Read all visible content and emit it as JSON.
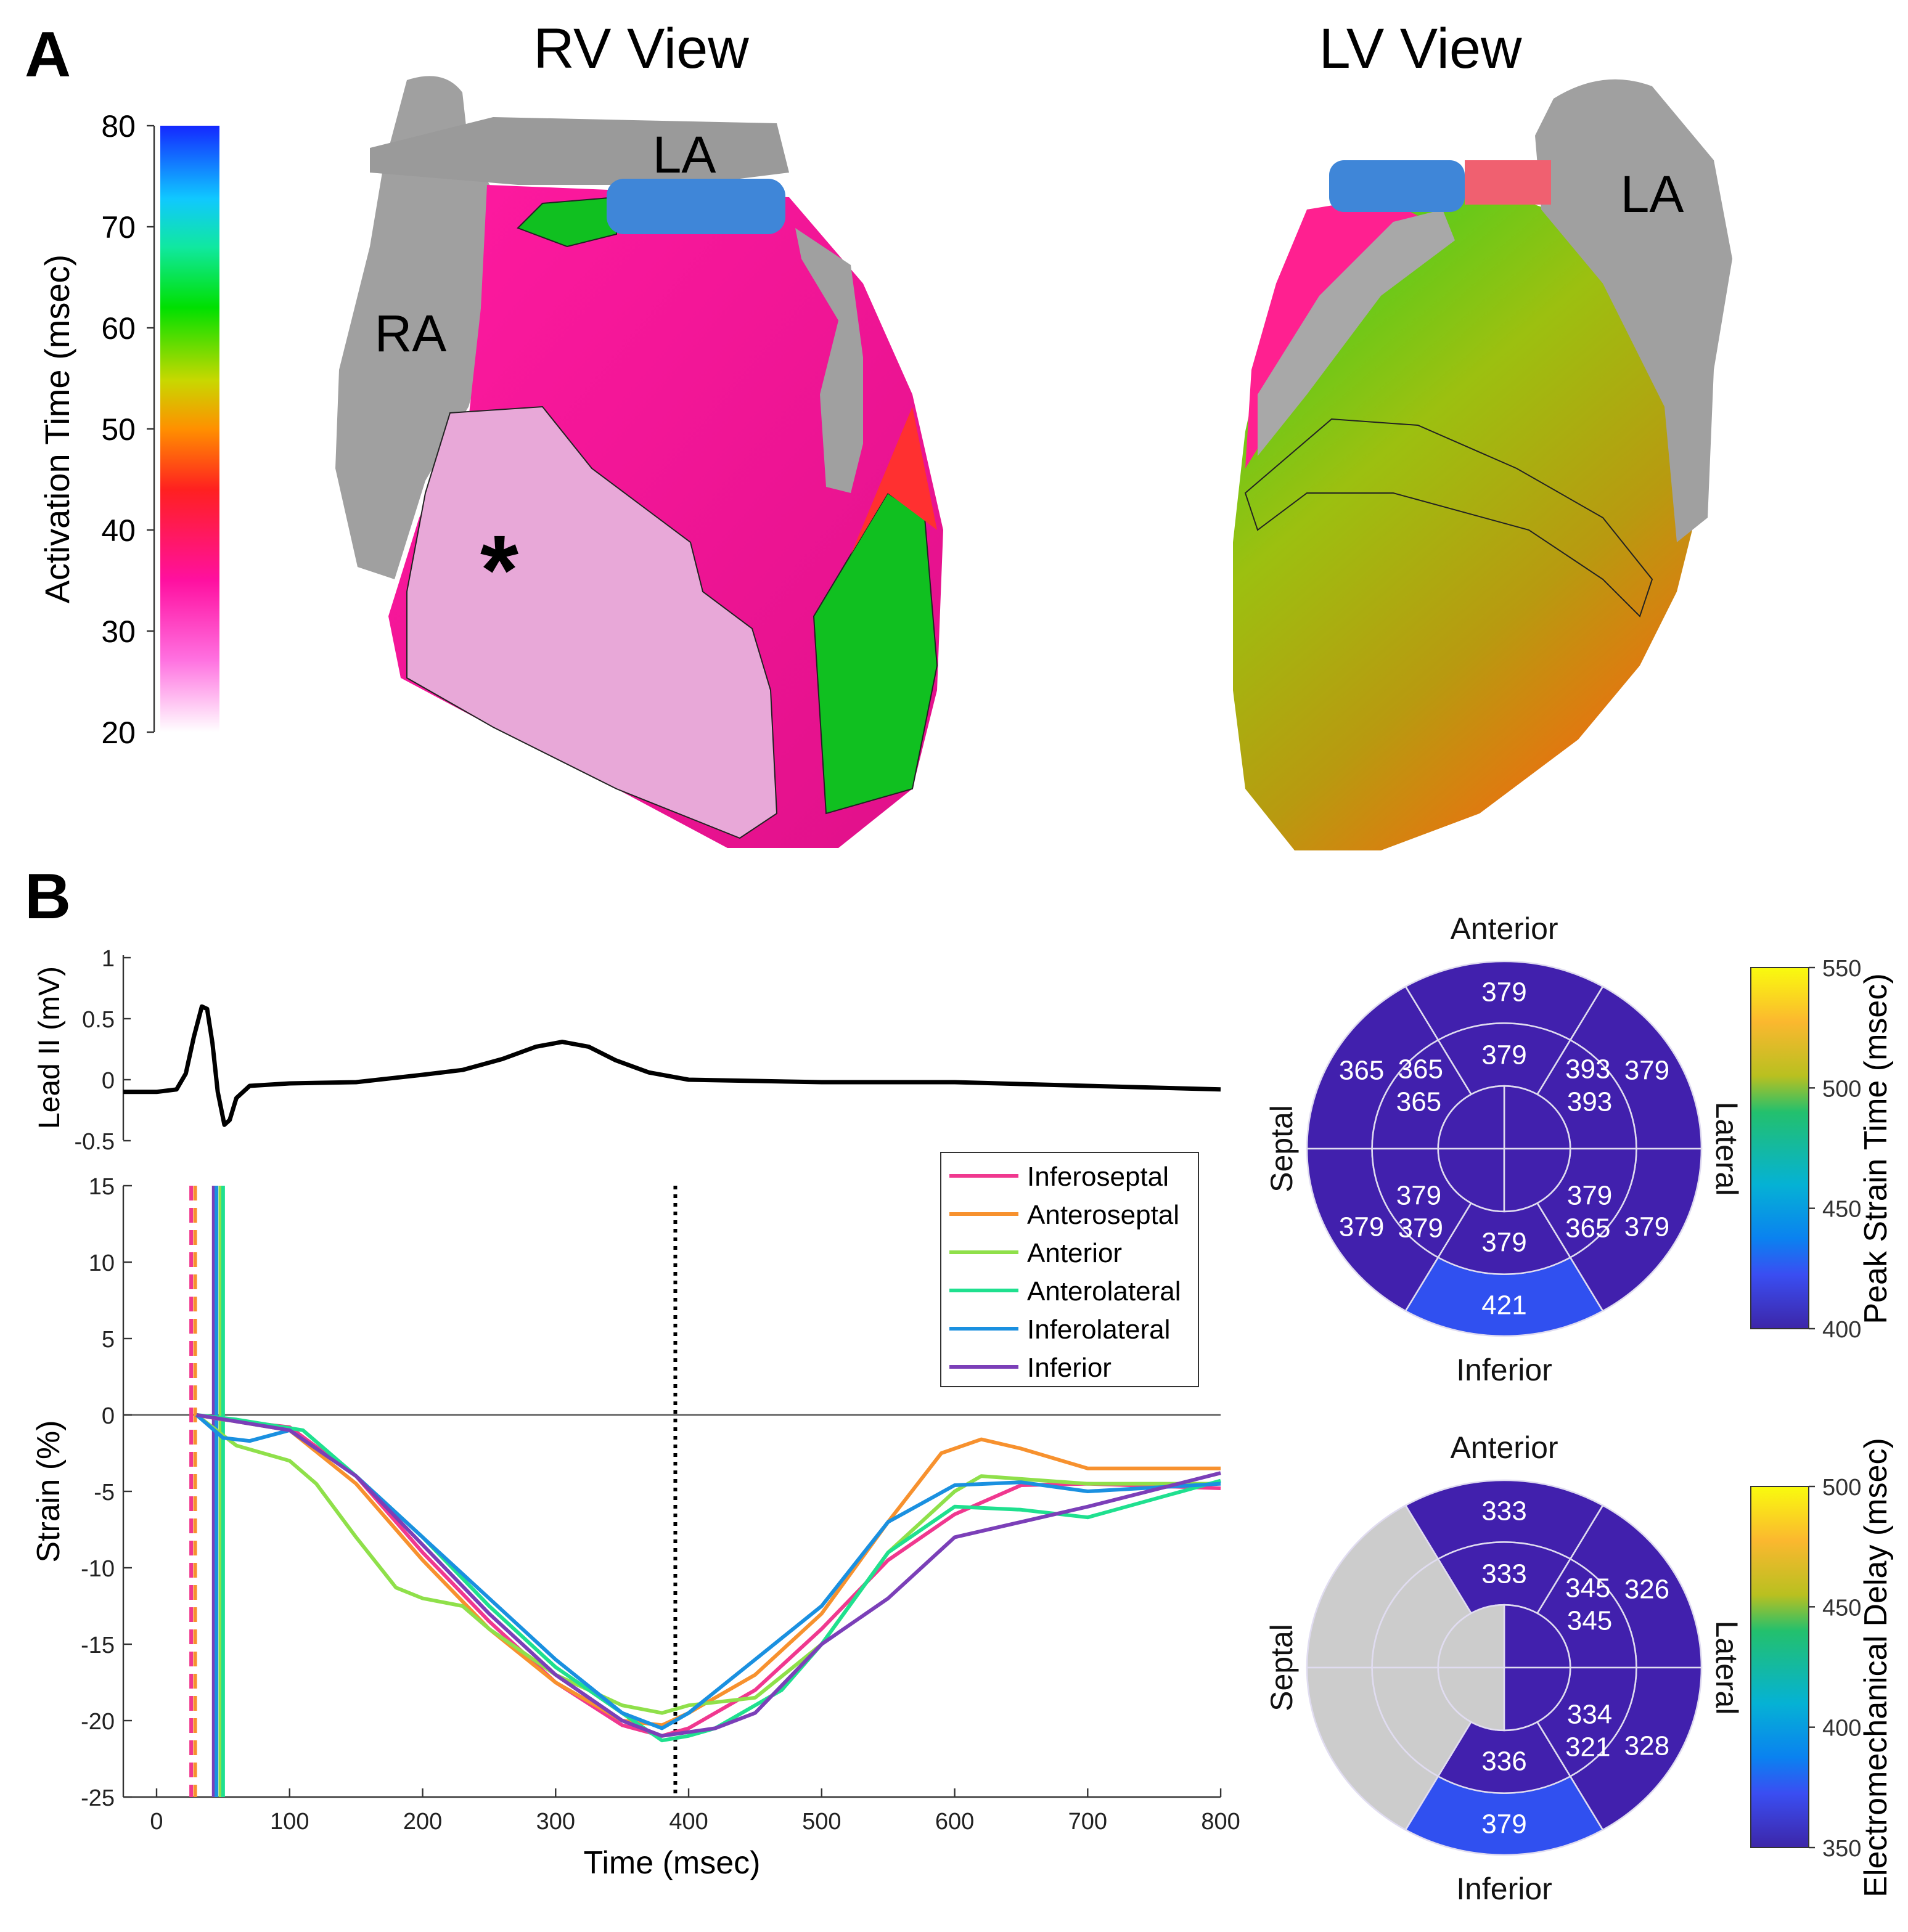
{
  "panel_labels": {
    "a": "A",
    "b": "B"
  },
  "panel_a": {
    "rv_title": "RV View",
    "lv_title": "LV View",
    "rv_labels": {
      "la": "LA",
      "ra": "RA",
      "asterisk": "*"
    },
    "lv_labels": {
      "la": "LA"
    },
    "colorbar": {
      "label": "Activation Time (msec)",
      "ticks": [
        80,
        70,
        60,
        50,
        40,
        30,
        20
      ],
      "range": [
        20,
        80
      ]
    }
  },
  "chart_data": [
    {
      "type": "line",
      "id": "ecg",
      "ylabel": "Lead II (mV)",
      "xlim": [
        -25,
        800
      ],
      "ylim": [
        -0.5,
        1
      ],
      "yticks": [
        "1",
        "0.5",
        "0",
        "-0.5"
      ],
      "ytick_values": [
        1,
        0.5,
        0,
        -0.5
      ],
      "color": "#000000",
      "points": [
        [
          -25,
          -0.1
        ],
        [
          0,
          -0.1
        ],
        [
          15,
          -0.08
        ],
        [
          22,
          0.05
        ],
        [
          28,
          0.35
        ],
        [
          34,
          0.6
        ],
        [
          38,
          0.58
        ],
        [
          42,
          0.3
        ],
        [
          46,
          -0.1
        ],
        [
          51,
          -0.37
        ],
        [
          55,
          -0.33
        ],
        [
          60,
          -0.15
        ],
        [
          70,
          -0.05
        ],
        [
          100,
          -0.03
        ],
        [
          150,
          -0.02
        ],
        [
          200,
          0.04
        ],
        [
          230,
          0.08
        ],
        [
          260,
          0.17
        ],
        [
          285,
          0.27
        ],
        [
          305,
          0.31
        ],
        [
          325,
          0.27
        ],
        [
          345,
          0.16
        ],
        [
          370,
          0.06
        ],
        [
          400,
          0.0
        ],
        [
          450,
          -0.01
        ],
        [
          500,
          -0.02
        ],
        [
          600,
          -0.02
        ],
        [
          700,
          -0.05
        ],
        [
          800,
          -0.08
        ]
      ]
    },
    {
      "type": "line",
      "id": "strain",
      "xlabel": "Time (msec)",
      "ylabel": "Strain (%)",
      "xlim": [
        -25,
        800
      ],
      "ylim": [
        -25,
        15
      ],
      "xticks": [
        0,
        100,
        200,
        300,
        400,
        500,
        600,
        700,
        800
      ],
      "yticks": [
        15,
        10,
        5,
        0,
        -5,
        -10,
        -15,
        -20,
        -25
      ],
      "legend_position": "top-right",
      "series": [
        {
          "name": "Inferoseptal",
          "color": "#f0388f",
          "points": [
            [
              30,
              0
            ],
            [
              50,
              -0.3
            ],
            [
              100,
              -0.8
            ],
            [
              150,
              -4
            ],
            [
              200,
              -9
            ],
            [
              250,
              -13.5
            ],
            [
              300,
              -17.5
            ],
            [
              350,
              -20.3
            ],
            [
              380,
              -21
            ],
            [
              400,
              -20.5
            ],
            [
              450,
              -18
            ],
            [
              500,
              -14
            ],
            [
              550,
              -9.5
            ],
            [
              600,
              -6.5
            ],
            [
              650,
              -4.6
            ],
            [
              700,
              -4.5
            ],
            [
              800,
              -4.8
            ]
          ]
        },
        {
          "name": "Anteroseptal",
          "color": "#f7912e",
          "points": [
            [
              30,
              0
            ],
            [
              100,
              -1
            ],
            [
              150,
              -4.5
            ],
            [
              200,
              -9.5
            ],
            [
              250,
              -14
            ],
            [
              300,
              -17.5
            ],
            [
              350,
              -20
            ],
            [
              380,
              -20.3
            ],
            [
              400,
              -19.5
            ],
            [
              450,
              -17
            ],
            [
              500,
              -13
            ],
            [
              550,
              -7
            ],
            [
              590,
              -2.5
            ],
            [
              620,
              -1.6
            ],
            [
              650,
              -2.2
            ],
            [
              700,
              -3.5
            ],
            [
              800,
              -3.5
            ]
          ]
        },
        {
          "name": "Anterior",
          "color": "#8fe04a",
          "points": [
            [
              30,
              0
            ],
            [
              60,
              -2
            ],
            [
              100,
              -3
            ],
            [
              120,
              -4.5
            ],
            [
              150,
              -8
            ],
            [
              180,
              -11.3
            ],
            [
              200,
              -12
            ],
            [
              230,
              -12.5
            ],
            [
              250,
              -14
            ],
            [
              300,
              -17
            ],
            [
              350,
              -19
            ],
            [
              380,
              -19.5
            ],
            [
              400,
              -19
            ],
            [
              450,
              -18.5
            ],
            [
              500,
              -15
            ],
            [
              550,
              -9
            ],
            [
              600,
              -5
            ],
            [
              620,
              -4
            ],
            [
              700,
              -4.5
            ],
            [
              800,
              -4.5
            ]
          ]
        },
        {
          "name": "Anterolateral",
          "color": "#1fe08f",
          "points": [
            [
              30,
              0
            ],
            [
              60,
              -0.3
            ],
            [
              110,
              -1
            ],
            [
              150,
              -4
            ],
            [
              200,
              -8
            ],
            [
              250,
              -12.5
            ],
            [
              300,
              -16.5
            ],
            [
              350,
              -19.5
            ],
            [
              380,
              -21.3
            ],
            [
              400,
              -21
            ],
            [
              420,
              -20.5
            ],
            [
              470,
              -18
            ],
            [
              500,
              -15
            ],
            [
              550,
              -9
            ],
            [
              600,
              -6
            ],
            [
              650,
              -6.2
            ],
            [
              700,
              -6.7
            ],
            [
              800,
              -4.3
            ]
          ]
        },
        {
          "name": "Inferolateral",
          "color": "#1a90e0",
          "points": [
            [
              30,
              0
            ],
            [
              50,
              -1.5
            ],
            [
              70,
              -1.7
            ],
            [
              100,
              -1
            ],
            [
              150,
              -4
            ],
            [
              200,
              -8
            ],
            [
              250,
              -12
            ],
            [
              300,
              -16
            ],
            [
              350,
              -19.5
            ],
            [
              380,
              -20.5
            ],
            [
              400,
              -19.5
            ],
            [
              450,
              -16
            ],
            [
              500,
              -12.5
            ],
            [
              550,
              -7
            ],
            [
              600,
              -4.6
            ],
            [
              650,
              -4.4
            ],
            [
              700,
              -5
            ],
            [
              800,
              -4.5
            ]
          ]
        },
        {
          "name": "Inferior",
          "color": "#7b3fb8",
          "points": [
            [
              30,
              0
            ],
            [
              100,
              -1
            ],
            [
              150,
              -4
            ],
            [
              200,
              -8.5
            ],
            [
              250,
              -13
            ],
            [
              300,
              -17
            ],
            [
              350,
              -20
            ],
            [
              380,
              -21
            ],
            [
              420,
              -20.5
            ],
            [
              450,
              -19.5
            ],
            [
              500,
              -15
            ],
            [
              550,
              -12
            ],
            [
              600,
              -8
            ],
            [
              700,
              -6
            ],
            [
              800,
              -3.8
            ]
          ]
        }
      ],
      "vertical_markers": [
        {
          "t": 26,
          "color": "#f0388f",
          "style": "dashed"
        },
        {
          "t": 29,
          "color": "#f7912e",
          "style": "dashed"
        },
        {
          "t": 43,
          "color": "#7b3fb8",
          "style": "solid"
        },
        {
          "t": 45,
          "color": "#1a90e0",
          "style": "solid"
        },
        {
          "t": 48,
          "color": "#8fe04a",
          "style": "solid"
        },
        {
          "t": 50,
          "color": "#1fe08f",
          "style": "solid"
        },
        {
          "t": 390,
          "color": "#000000",
          "style": "dotted"
        }
      ]
    },
    {
      "type": "heatmap",
      "id": "bullseye-peak-strain",
      "directions": {
        "top": "Anterior",
        "bottom": "Inferior",
        "left": "Septal",
        "right": "Lateral"
      },
      "colorbar": {
        "label": "Peak Strain Time (msec)",
        "ticks": [
          550,
          500,
          450,
          400
        ],
        "range": [
          400,
          550
        ]
      },
      "outer": {
        "anterior": 379,
        "anteroseptal": 365,
        "inferoseptal": 379,
        "inferior": 421,
        "inferolateral": 379,
        "anterolateral": 379
      },
      "middle": {
        "anterior": 379,
        "anteroseptal": 365,
        "inferoseptal": 379,
        "inferior": 379,
        "inferolateral": 379,
        "anterolateral": 393
      },
      "inner": {
        "anteroseptal": 365,
        "anterolateral": 393,
        "inferoseptal": 379,
        "inferolateral": 365
      }
    },
    {
      "type": "heatmap",
      "id": "bullseye-em-delay",
      "directions": {
        "top": "Anterior",
        "bottom": "Inferior",
        "left": "Septal",
        "right": "Lateral"
      },
      "colorbar": {
        "label": "Electromechanical Delay (msec)",
        "ticks": [
          500,
          450,
          400,
          350
        ],
        "range": [
          350,
          500
        ]
      },
      "outer": {
        "anterior": 333,
        "anteroseptal": null,
        "inferoseptal": null,
        "inferior": 379,
        "inferolateral": 328,
        "anterolateral": 326
      },
      "middle": {
        "anterior": 333,
        "anteroseptal": null,
        "inferoseptal": null,
        "inferior": 336,
        "inferolateral": 334,
        "anterolateral": 345
      },
      "inner": {
        "anteroseptal": null,
        "anterolateral": 345,
        "inferoseptal": null,
        "inferolateral": 321
      }
    }
  ]
}
